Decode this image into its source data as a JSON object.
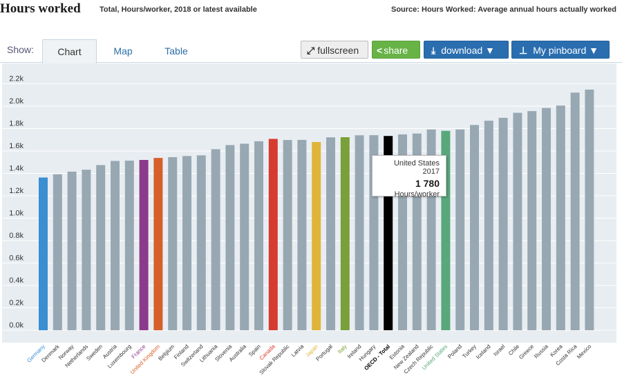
{
  "header": {
    "title": "Hours worked",
    "subtitle": "Total, Hours/worker, 2018 or latest available",
    "source": "Source: Hours Worked: Average annual hours actually worked"
  },
  "tabs": {
    "show_label": "Show:",
    "items": [
      "Chart",
      "Map",
      "Table"
    ],
    "active": "Chart"
  },
  "toolbar": {
    "fullscreen_label": "fullscreen",
    "share_label": "share",
    "download_label": "download ▼",
    "pinboard_label": "My pinboard ▼"
  },
  "tooltip": {
    "country": "United States 2017",
    "value": "1 780",
    "unit": "Hours/worker"
  },
  "colors": {
    "default_bar": "#97a8b3",
    "plot_bg": "#e8edf1",
    "grid": "#ffffff"
  },
  "chart_data": {
    "type": "bar",
    "title": "Hours worked",
    "ylabel": "",
    "ylim": [
      0,
      2300
    ],
    "yticks": [
      {
        "value": 0,
        "label": "0.0k"
      },
      {
        "value": 200,
        "label": "0.2k"
      },
      {
        "value": 400,
        "label": "0.4k"
      },
      {
        "value": 600,
        "label": "0.6k"
      },
      {
        "value": 800,
        "label": "0.8k"
      },
      {
        "value": 1000,
        "label": "1.0k"
      },
      {
        "value": 1200,
        "label": "1.2k"
      },
      {
        "value": 1400,
        "label": "1.4k"
      },
      {
        "value": 1600,
        "label": "1.6k"
      },
      {
        "value": 1800,
        "label": "1.8k"
      },
      {
        "value": 2000,
        "label": "2.0k"
      },
      {
        "value": 2200,
        "label": "2.2k"
      }
    ],
    "grid": true,
    "categories": [
      "Germany",
      "Denmark",
      "Norway",
      "Netherlands",
      "Sweden",
      "Austria",
      "Luxembourg",
      "France",
      "United Kingdom",
      "Belgium",
      "Finland",
      "Switzerland",
      "Lithuania",
      "Slovenia",
      "Australia",
      "Spain",
      "Canada",
      "Slovak Republic",
      "Latvia",
      "Japan",
      "Portugal",
      "Italy",
      "Ireland",
      "Hungary",
      "OECD - Total",
      "Estonia",
      "New Zealand",
      "Czech Republic",
      "United States",
      "Poland",
      "Turkey",
      "Iceland",
      "Israel",
      "Chile",
      "Greece",
      "Russia",
      "Korea",
      "Costa Rica",
      "Mexico"
    ],
    "values": [
      1363,
      1392,
      1416,
      1433,
      1474,
      1511,
      1514,
      1520,
      1538,
      1545,
      1555,
      1561,
      1616,
      1653,
      1665,
      1687,
      1708,
      1698,
      1699,
      1680,
      1722,
      1723,
      1740,
      1741,
      1734,
      1748,
      1756,
      1792,
      1780,
      1792,
      1832,
      1870,
      1896,
      1941,
      1956,
      1984,
      2005,
      2121,
      2148
    ],
    "bar_colors": {
      "Germany": "#3a8ed2",
      "France": "#8c3a8c",
      "United Kingdom": "#d65f2a",
      "Canada": "#d63b30",
      "Japan": "#e0b43a",
      "Italy": "#7aa03a",
      "OECD - Total": "#000000",
      "United States": "#58a87c"
    },
    "label_colors": {
      "Germany": "#3a8ed2",
      "France": "#8c3a8c",
      "United Kingdom": "#d65f2a",
      "Canada": "#d63b30",
      "Japan": "#e0b43a",
      "Italy": "#7aa03a",
      "OECD - Total": "#000000",
      "United States": "#58a87c"
    },
    "bold_labels": [
      "OECD - Total"
    ]
  }
}
